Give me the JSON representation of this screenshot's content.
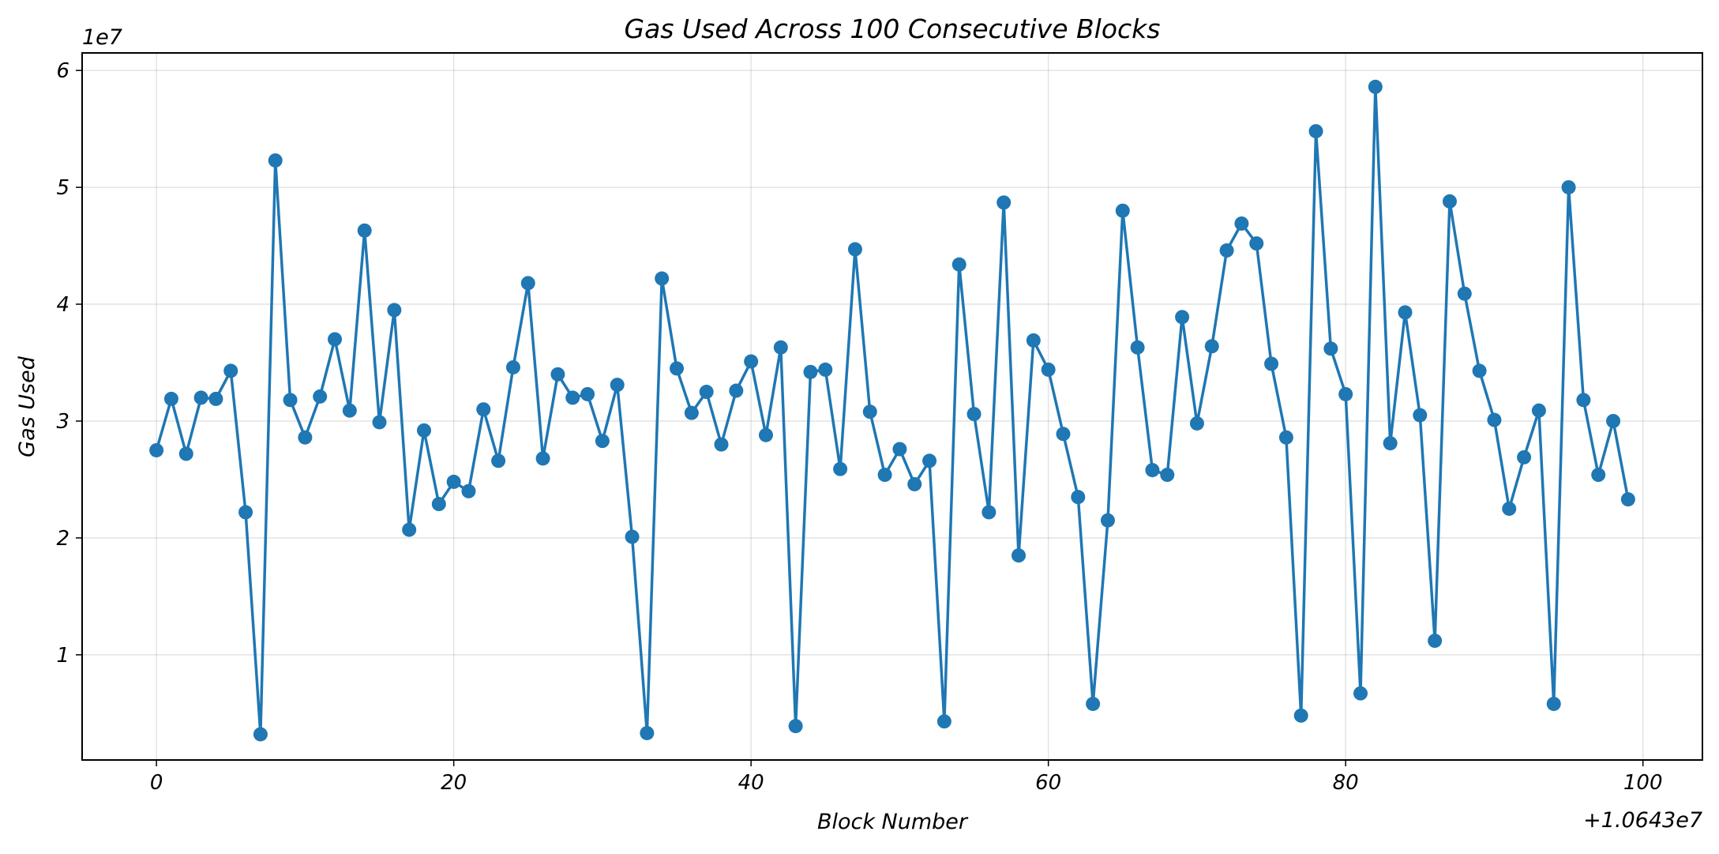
{
  "chart_data": {
    "type": "line",
    "title": "Gas Used Across 100 Consecutive Blocks",
    "xlabel": "Block Number",
    "ylabel": "Gas Used",
    "x_offset_label": "+1.0643e7",
    "y_scale_label": "1e7",
    "x_ticks": [
      0,
      20,
      40,
      60,
      80,
      100
    ],
    "x_tick_labels": [
      "0",
      "20",
      "40",
      "60",
      "80",
      "100"
    ],
    "y_ticks": [
      1,
      2,
      3,
      4,
      5,
      6
    ],
    "y_tick_labels": [
      "1",
      "2",
      "3",
      "4",
      "5",
      "6"
    ],
    "xlim": [
      -5,
      104
    ],
    "ylim": [
      0.1,
      6.15
    ],
    "grid": true,
    "markers": true,
    "color": "#1f77b4",
    "series": [
      {
        "x": [
          0,
          1,
          2,
          3,
          4,
          5,
          6,
          7,
          8,
          9,
          10,
          11,
          12,
          13,
          14,
          15,
          16,
          17,
          18,
          19,
          20,
          21,
          22,
          23,
          24,
          25,
          26,
          27,
          28,
          29,
          30,
          31,
          32,
          33,
          34,
          35,
          36,
          37,
          38,
          39,
          40,
          41,
          42,
          43,
          44,
          45,
          46,
          47,
          48,
          49,
          50,
          51,
          52,
          53,
          54,
          55,
          56,
          57,
          58,
          59,
          60,
          61,
          62,
          63,
          64,
          65,
          66,
          67,
          68,
          69,
          70,
          71,
          72,
          73,
          74,
          75,
          76,
          77,
          78,
          79,
          80,
          81,
          82,
          83,
          84,
          85,
          86,
          87,
          88,
          89,
          90,
          91,
          92,
          93,
          94,
          95,
          96,
          97,
          98,
          99
        ],
        "values": [
          2.75,
          3.19,
          2.72,
          3.2,
          3.19,
          3.43,
          2.22,
          0.32,
          5.23,
          3.18,
          2.86,
          3.21,
          3.7,
          3.09,
          4.63,
          2.99,
          3.95,
          2.07,
          2.92,
          2.29,
          2.48,
          2.4,
          3.1,
          2.66,
          3.46,
          4.18,
          2.68,
          3.4,
          3.2,
          3.23,
          2.83,
          3.31,
          2.01,
          0.33,
          4.22,
          3.45,
          3.07,
          3.25,
          2.8,
          3.26,
          3.51,
          2.88,
          3.63,
          0.39,
          3.42,
          3.44,
          2.59,
          4.47,
          3.08,
          2.54,
          2.76,
          2.46,
          2.66,
          0.43,
          4.34,
          3.06,
          2.22,
          4.87,
          1.85,
          3.69,
          3.44,
          2.89,
          2.35,
          0.58,
          2.15,
          4.8,
          3.63,
          2.58,
          2.54,
          3.89,
          2.98,
          3.64,
          4.46,
          4.69,
          4.52,
          3.49,
          2.86,
          0.48,
          5.48,
          3.62,
          3.23,
          0.67,
          5.86,
          2.81,
          3.93,
          3.05,
          1.12,
          4.88,
          4.09,
          3.43,
          3.01,
          2.25,
          2.69,
          3.09,
          0.58,
          5.0,
          3.18,
          2.54,
          3.0,
          2.33
        ]
      }
    ]
  }
}
